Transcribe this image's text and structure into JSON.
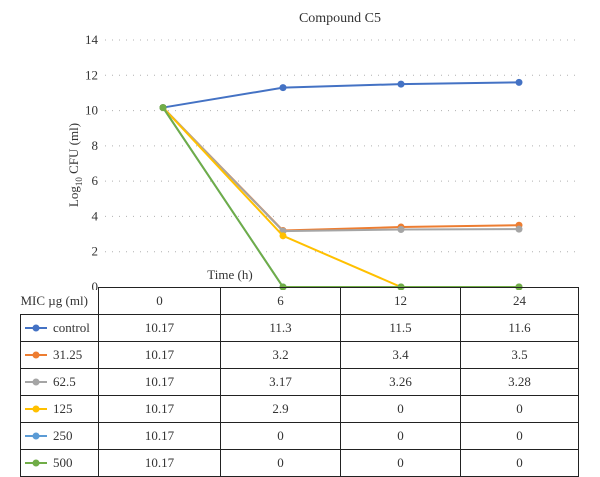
{
  "chart_data": {
    "type": "line",
    "title": "Compound C5",
    "ylabel_base": "Log",
    "ylabel_sub": "10",
    "ylabel_rest": " CFU (ml)",
    "xlabel": "Time (h)",
    "table_header_label": "MIC µg (ml)",
    "categories": [
      "0",
      "6",
      "12",
      "24"
    ],
    "ylim": [
      0,
      14
    ],
    "yticks": [
      0,
      2,
      4,
      6,
      8,
      10,
      12,
      14
    ],
    "grid": true,
    "series": [
      {
        "name": "control",
        "color": "#4472c4",
        "values": [
          10.17,
          11.3,
          11.5,
          11.6
        ],
        "labels": [
          "10.17",
          "11.3",
          "11.5",
          "11.6"
        ]
      },
      {
        "name": "31.25",
        "color": "#ed7d31",
        "values": [
          10.17,
          3.2,
          3.4,
          3.5
        ],
        "labels": [
          "10.17",
          "3.2",
          "3.4",
          "3.5"
        ]
      },
      {
        "name": "62.5",
        "color": "#a5a5a5",
        "values": [
          10.17,
          3.17,
          3.26,
          3.28
        ],
        "labels": [
          "10.17",
          "3.17",
          "3.26",
          "3.28"
        ]
      },
      {
        "name": "125",
        "color": "#ffc000",
        "values": [
          10.17,
          2.9,
          0,
          0
        ],
        "labels": [
          "10.17",
          "2.9",
          "0",
          "0"
        ]
      },
      {
        "name": "250",
        "color": "#5b9bd5",
        "values": [
          10.17,
          0,
          0,
          0
        ],
        "labels": [
          "10.17",
          "0",
          "0",
          "0"
        ]
      },
      {
        "name": "500",
        "color": "#70ad47",
        "values": [
          10.17,
          0,
          0,
          0
        ],
        "labels": [
          "10.17",
          "0",
          "0",
          "0"
        ]
      }
    ]
  }
}
